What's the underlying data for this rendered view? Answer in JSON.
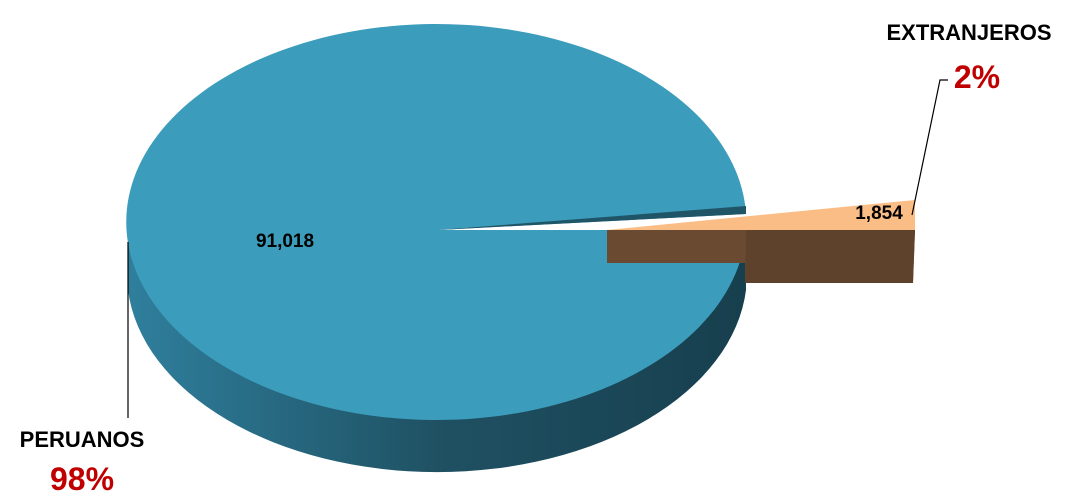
{
  "chart_data": {
    "type": "pie",
    "slices": [
      {
        "name": "PERUANOS",
        "value": 91018,
        "value_label": "91,018",
        "percent_label": "98%",
        "top_color": "#3b9cbb",
        "side_color": "#23607a"
      },
      {
        "name": "EXTRANJEROS",
        "value": 1854,
        "value_label": "1,854",
        "percent_label": "2%",
        "top_color": "#fbbd86",
        "side_color": "#6a4a30"
      }
    ],
    "percent_color": "#c00000",
    "three_d": true,
    "exploded_slice": "EXTRANJEROS"
  }
}
